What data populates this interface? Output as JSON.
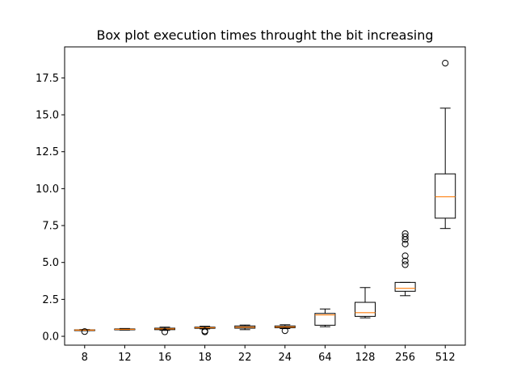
{
  "chart_data": {
    "type": "box",
    "title": "Box plot execution times throught the bit increasing",
    "xlabel": "",
    "ylabel": "",
    "categories": [
      "8",
      "12",
      "16",
      "18",
      "22",
      "24",
      "64",
      "128",
      "256",
      "512"
    ],
    "ylim": [
      -0.6,
      19.6
    ],
    "yticks": [
      "0.0",
      "2.5",
      "5.0",
      "7.5",
      "10.0",
      "12.5",
      "15.0",
      "17.5"
    ],
    "grid": false,
    "boxes": [
      {
        "whisker_low": 0.38,
        "q1": 0.4,
        "median": 0.42,
        "q3": 0.44,
        "whisker_high": 0.46,
        "outliers": [
          0.32
        ]
      },
      {
        "whisker_low": 0.42,
        "q1": 0.44,
        "median": 0.47,
        "q3": 0.5,
        "whisker_high": 0.53,
        "outliers": []
      },
      {
        "whisker_low": 0.4,
        "q1": 0.45,
        "median": 0.5,
        "q3": 0.55,
        "whisker_high": 0.62,
        "outliers": [
          0.3
        ]
      },
      {
        "whisker_low": 0.5,
        "q1": 0.54,
        "median": 0.58,
        "q3": 0.62,
        "whisker_high": 0.68,
        "outliers": [
          0.36,
          0.3
        ]
      },
      {
        "whisker_low": 0.45,
        "q1": 0.55,
        "median": 0.62,
        "q3": 0.7,
        "whisker_high": 0.76,
        "outliers": []
      },
      {
        "whisker_low": 0.52,
        "q1": 0.58,
        "median": 0.63,
        "q3": 0.7,
        "whisker_high": 0.78,
        "outliers": [
          0.38
        ]
      },
      {
        "whisker_low": 0.65,
        "q1": 0.75,
        "median": 1.45,
        "q3": 1.55,
        "whisker_high": 1.85,
        "outliers": []
      },
      {
        "whisker_low": 1.25,
        "q1": 1.35,
        "median": 1.6,
        "q3": 2.3,
        "whisker_high": 3.3,
        "outliers": []
      },
      {
        "whisker_low": 2.75,
        "q1": 3.05,
        "median": 3.25,
        "q3": 3.65,
        "whisker_high": 3.65,
        "outliers": [
          4.85,
          5.1,
          5.45,
          6.25,
          6.55,
          6.75,
          6.95
        ]
      },
      {
        "whisker_low": 7.3,
        "q1": 8.0,
        "median": 9.45,
        "q3": 11.0,
        "whisker_high": 15.45,
        "outliers": [
          18.5
        ]
      }
    ],
    "colors": {
      "box": "#000000",
      "median": "#ff7f0e",
      "axes": "#000000"
    }
  }
}
